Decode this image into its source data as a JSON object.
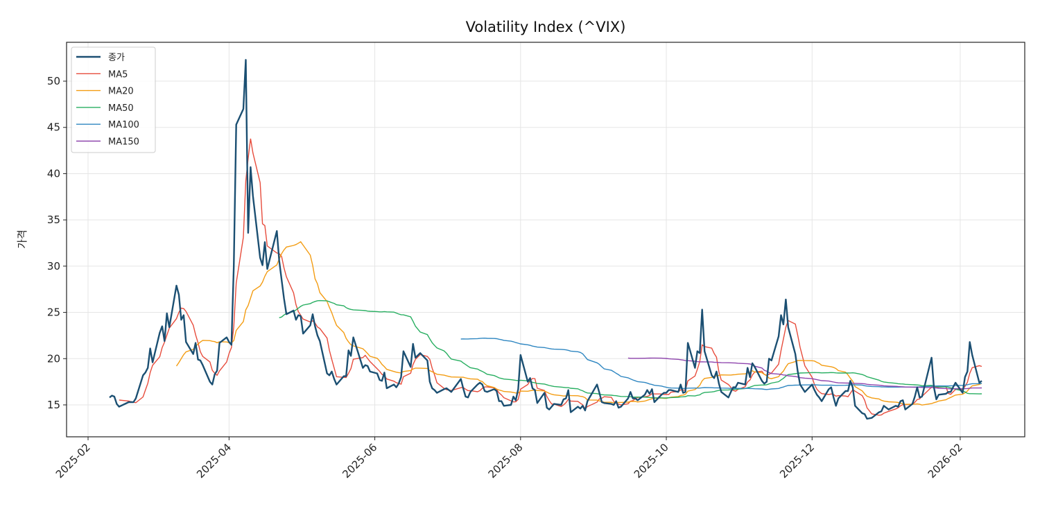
{
  "chart_data": {
    "type": "line",
    "title": "Volatility Index (^VIX)",
    "xlabel": "",
    "ylabel": "가격",
    "xlim": [
      "2025-01-23",
      "2026-02-28"
    ],
    "ylim": [
      11.55,
      54.2
    ],
    "x_ticks": [
      "2025-02",
      "2025-04",
      "2025-06",
      "2025-08",
      "2025-10",
      "2025-12",
      "2026-02"
    ],
    "y_ticks": [
      15,
      20,
      25,
      30,
      35,
      40,
      45,
      50
    ],
    "grid": true,
    "legend_position": "top-left",
    "close": {
      "name": "종가",
      "color": "#1b4f72",
      "points": [
        [
          "2025-02-10",
          15.8
        ],
        [
          "2025-02-11",
          16.0
        ],
        [
          "2025-02-12",
          15.9
        ],
        [
          "2025-02-13",
          15.1
        ],
        [
          "2025-02-14",
          14.8
        ],
        [
          "2025-02-18",
          15.3
        ],
        [
          "2025-02-20",
          15.3
        ],
        [
          "2025-02-21",
          15.7
        ],
        [
          "2025-02-24",
          18.2
        ],
        [
          "2025-02-25",
          18.5
        ],
        [
          "2025-02-26",
          19.0
        ],
        [
          "2025-02-27",
          21.1
        ],
        [
          "2025-02-28",
          19.6
        ],
        [
          "2025-03-03",
          22.8
        ],
        [
          "2025-03-04",
          23.5
        ],
        [
          "2025-03-05",
          21.9
        ],
        [
          "2025-03-06",
          24.9
        ],
        [
          "2025-03-07",
          23.4
        ],
        [
          "2025-03-10",
          27.9
        ],
        [
          "2025-03-11",
          26.9
        ],
        [
          "2025-03-12",
          24.2
        ],
        [
          "2025-03-13",
          24.7
        ],
        [
          "2025-03-14",
          21.8
        ],
        [
          "2025-03-17",
          20.5
        ],
        [
          "2025-03-18",
          21.7
        ],
        [
          "2025-03-19",
          19.9
        ],
        [
          "2025-03-20",
          19.8
        ],
        [
          "2025-03-21",
          19.3
        ],
        [
          "2025-03-24",
          17.5
        ],
        [
          "2025-03-25",
          17.2
        ],
        [
          "2025-03-26",
          18.3
        ],
        [
          "2025-03-27",
          18.7
        ],
        [
          "2025-03-28",
          21.7
        ],
        [
          "2025-03-31",
          22.3
        ],
        [
          "2025-04-01",
          21.8
        ],
        [
          "2025-04-02",
          21.5
        ],
        [
          "2025-04-03",
          30.0
        ],
        [
          "2025-04-04",
          45.3
        ],
        [
          "2025-04-07",
          47.0
        ],
        [
          "2025-04-08",
          52.3
        ],
        [
          "2025-04-09",
          33.6
        ],
        [
          "2025-04-10",
          40.7
        ],
        [
          "2025-04-11",
          37.6
        ],
        [
          "2025-04-14",
          30.9
        ],
        [
          "2025-04-15",
          30.1
        ],
        [
          "2025-04-16",
          32.6
        ],
        [
          "2025-04-17",
          29.7
        ],
        [
          "2025-04-21",
          33.8
        ],
        [
          "2025-04-22",
          30.6
        ],
        [
          "2025-04-23",
          28.5
        ],
        [
          "2025-04-24",
          26.5
        ],
        [
          "2025-04-25",
          24.8
        ],
        [
          "2025-04-28",
          25.2
        ],
        [
          "2025-04-29",
          24.2
        ],
        [
          "2025-04-30",
          24.7
        ],
        [
          "2025-05-01",
          24.6
        ],
        [
          "2025-05-02",
          22.7
        ],
        [
          "2025-05-05",
          23.6
        ],
        [
          "2025-05-06",
          24.8
        ],
        [
          "2025-05-07",
          23.5
        ],
        [
          "2025-05-08",
          22.5
        ],
        [
          "2025-05-09",
          21.9
        ],
        [
          "2025-05-12",
          18.4
        ],
        [
          "2025-05-13",
          18.2
        ],
        [
          "2025-05-14",
          18.6
        ],
        [
          "2025-05-15",
          17.8
        ],
        [
          "2025-05-16",
          17.2
        ],
        [
          "2025-05-19",
          18.1
        ],
        [
          "2025-05-20",
          18.1
        ],
        [
          "2025-05-21",
          20.9
        ],
        [
          "2025-05-22",
          20.3
        ],
        [
          "2025-05-23",
          22.3
        ],
        [
          "2025-05-27",
          19.0
        ],
        [
          "2025-05-28",
          19.3
        ],
        [
          "2025-05-29",
          19.2
        ],
        [
          "2025-05-30",
          18.6
        ],
        [
          "2025-06-02",
          18.4
        ],
        [
          "2025-06-03",
          17.7
        ],
        [
          "2025-06-04",
          17.6
        ],
        [
          "2025-06-05",
          18.5
        ],
        [
          "2025-06-06",
          16.8
        ],
        [
          "2025-06-09",
          17.2
        ],
        [
          "2025-06-10",
          16.9
        ],
        [
          "2025-06-11",
          17.3
        ],
        [
          "2025-06-12",
          18.0
        ],
        [
          "2025-06-13",
          20.8
        ],
        [
          "2025-06-16",
          19.1
        ],
        [
          "2025-06-17",
          21.6
        ],
        [
          "2025-06-18",
          20.1
        ],
        [
          "2025-06-20",
          20.6
        ],
        [
          "2025-06-23",
          19.8
        ],
        [
          "2025-06-24",
          17.5
        ],
        [
          "2025-06-25",
          16.8
        ],
        [
          "2025-06-26",
          16.6
        ],
        [
          "2025-06-27",
          16.3
        ],
        [
          "2025-06-30",
          16.7
        ],
        [
          "2025-07-01",
          16.8
        ],
        [
          "2025-07-02",
          16.6
        ],
        [
          "2025-07-03",
          16.4
        ],
        [
          "2025-07-07",
          17.8
        ],
        [
          "2025-07-08",
          16.8
        ],
        [
          "2025-07-09",
          15.9
        ],
        [
          "2025-07-10",
          15.8
        ],
        [
          "2025-07-11",
          16.4
        ],
        [
          "2025-07-14",
          17.2
        ],
        [
          "2025-07-15",
          17.4
        ],
        [
          "2025-07-16",
          17.2
        ],
        [
          "2025-07-17",
          16.5
        ],
        [
          "2025-07-18",
          16.4
        ],
        [
          "2025-07-21",
          16.7
        ],
        [
          "2025-07-22",
          16.5
        ],
        [
          "2025-07-23",
          15.4
        ],
        [
          "2025-07-24",
          15.4
        ],
        [
          "2025-07-25",
          14.9
        ],
        [
          "2025-07-28",
          15.0
        ],
        [
          "2025-07-29",
          15.9
        ],
        [
          "2025-07-30",
          15.5
        ],
        [
          "2025-07-31",
          16.7
        ],
        [
          "2025-08-01",
          20.4
        ],
        [
          "2025-08-04",
          17.5
        ],
        [
          "2025-08-05",
          17.9
        ],
        [
          "2025-08-06",
          16.8
        ],
        [
          "2025-08-07",
          16.6
        ],
        [
          "2025-08-08",
          15.2
        ],
        [
          "2025-08-11",
          16.3
        ],
        [
          "2025-08-12",
          14.7
        ],
        [
          "2025-08-13",
          14.5
        ],
        [
          "2025-08-14",
          14.8
        ],
        [
          "2025-08-15",
          15.1
        ],
        [
          "2025-08-18",
          15.0
        ],
        [
          "2025-08-19",
          15.6
        ],
        [
          "2025-08-20",
          15.7
        ],
        [
          "2025-08-21",
          16.6
        ],
        [
          "2025-08-22",
          14.2
        ],
        [
          "2025-08-25",
          14.8
        ],
        [
          "2025-08-26",
          14.6
        ],
        [
          "2025-08-27",
          14.9
        ],
        [
          "2025-08-28",
          14.4
        ],
        [
          "2025-08-29",
          15.4
        ],
        [
          "2025-09-02",
          17.2
        ],
        [
          "2025-09-03",
          16.3
        ],
        [
          "2025-09-04",
          15.3
        ],
        [
          "2025-09-05",
          15.2
        ],
        [
          "2025-09-08",
          15.1
        ],
        [
          "2025-09-09",
          15.0
        ],
        [
          "2025-09-10",
          15.4
        ],
        [
          "2025-09-11",
          14.7
        ],
        [
          "2025-09-12",
          14.8
        ],
        [
          "2025-09-15",
          15.7
        ],
        [
          "2025-09-16",
          16.4
        ],
        [
          "2025-09-17",
          15.7
        ],
        [
          "2025-09-18",
          15.7
        ],
        [
          "2025-09-19",
          15.5
        ],
        [
          "2025-09-22",
          16.1
        ],
        [
          "2025-09-23",
          16.6
        ],
        [
          "2025-09-24",
          16.2
        ],
        [
          "2025-09-25",
          16.7
        ],
        [
          "2025-09-26",
          15.3
        ],
        [
          "2025-09-29",
          16.1
        ],
        [
          "2025-09-30",
          16.3
        ],
        [
          "2025-10-01",
          16.3
        ],
        [
          "2025-10-02",
          16.6
        ],
        [
          "2025-10-03",
          16.6
        ],
        [
          "2025-10-06",
          16.4
        ],
        [
          "2025-10-07",
          17.2
        ],
        [
          "2025-10-08",
          16.3
        ],
        [
          "2025-10-09",
          16.4
        ],
        [
          "2025-10-10",
          21.7
        ],
        [
          "2025-10-13",
          19.0
        ],
        [
          "2025-10-14",
          20.8
        ],
        [
          "2025-10-15",
          20.6
        ],
        [
          "2025-10-16",
          25.3
        ],
        [
          "2025-10-17",
          20.8
        ],
        [
          "2025-10-20",
          18.2
        ],
        [
          "2025-10-21",
          17.9
        ],
        [
          "2025-10-22",
          18.6
        ],
        [
          "2025-10-23",
          17.3
        ],
        [
          "2025-10-24",
          16.4
        ],
        [
          "2025-10-27",
          15.8
        ],
        [
          "2025-10-28",
          16.4
        ],
        [
          "2025-10-29",
          16.9
        ],
        [
          "2025-10-30",
          16.9
        ],
        [
          "2025-10-31",
          17.4
        ],
        [
          "2025-11-03",
          17.2
        ],
        [
          "2025-11-04",
          19.0
        ],
        [
          "2025-11-05",
          18.0
        ],
        [
          "2025-11-06",
          19.5
        ],
        [
          "2025-11-07",
          19.1
        ],
        [
          "2025-11-10",
          17.6
        ],
        [
          "2025-11-11",
          17.3
        ],
        [
          "2025-11-12",
          17.5
        ],
        [
          "2025-11-13",
          20.0
        ],
        [
          "2025-11-14",
          19.8
        ],
        [
          "2025-11-17",
          22.4
        ],
        [
          "2025-11-18",
          24.7
        ],
        [
          "2025-11-19",
          23.7
        ],
        [
          "2025-11-20",
          26.4
        ],
        [
          "2025-11-21",
          23.4
        ],
        [
          "2025-11-24",
          20.5
        ],
        [
          "2025-11-25",
          18.6
        ],
        [
          "2025-11-26",
          17.2
        ],
        [
          "2025-11-28",
          16.4
        ],
        [
          "2025-12-01",
          17.2
        ],
        [
          "2025-12-02",
          16.6
        ],
        [
          "2025-12-03",
          16.1
        ],
        [
          "2025-12-04",
          15.8
        ],
        [
          "2025-12-05",
          15.4
        ],
        [
          "2025-12-08",
          16.7
        ],
        [
          "2025-12-09",
          16.9
        ],
        [
          "2025-12-10",
          15.8
        ],
        [
          "2025-12-11",
          14.9
        ],
        [
          "2025-12-12",
          15.7
        ],
        [
          "2025-12-15",
          16.5
        ],
        [
          "2025-12-16",
          16.5
        ],
        [
          "2025-12-17",
          17.6
        ],
        [
          "2025-12-18",
          16.9
        ],
        [
          "2025-12-19",
          14.9
        ],
        [
          "2025-12-22",
          14.1
        ],
        [
          "2025-12-23",
          14.0
        ],
        [
          "2025-12-24",
          13.5
        ],
        [
          "2025-12-26",
          13.6
        ],
        [
          "2025-12-29",
          14.2
        ],
        [
          "2025-12-30",
          14.3
        ],
        [
          "2025-12-31",
          14.9
        ],
        [
          "2026-01-02",
          14.5
        ],
        [
          "2026-01-05",
          14.9
        ],
        [
          "2026-01-06",
          14.8
        ],
        [
          "2026-01-07",
          15.4
        ],
        [
          "2026-01-08",
          15.5
        ],
        [
          "2026-01-09",
          14.5
        ],
        [
          "2026-01-12",
          15.1
        ],
        [
          "2026-01-13",
          15.9
        ],
        [
          "2026-01-14",
          16.9
        ],
        [
          "2026-01-15",
          15.8
        ],
        [
          "2026-01-16",
          15.9
        ],
        [
          "2026-01-20",
          20.1
        ],
        [
          "2026-01-21",
          16.9
        ],
        [
          "2026-01-22",
          15.6
        ],
        [
          "2026-01-23",
          16.1
        ],
        [
          "2026-01-26",
          16.2
        ],
        [
          "2026-01-27",
          16.4
        ],
        [
          "2026-01-28",
          16.4
        ],
        [
          "2026-01-29",
          16.9
        ],
        [
          "2026-01-30",
          17.4
        ],
        [
          "2026-02-02",
          16.3
        ],
        [
          "2026-02-03",
          18.0
        ],
        [
          "2026-02-04",
          18.6
        ],
        [
          "2026-02-05",
          21.8
        ],
        [
          "2026-02-06",
          20.4
        ],
        [
          "2026-02-09",
          17.4
        ],
        [
          "2026-02-10",
          17.6
        ]
      ]
    },
    "moving_averages": [
      {
        "name": "MA5",
        "window": 5,
        "color": "#e74c3c"
      },
      {
        "name": "MA20",
        "window": 20,
        "color": "#f39c12"
      },
      {
        "name": "MA50",
        "window": 50,
        "color": "#27ae60"
      },
      {
        "name": "MA100",
        "window": 100,
        "color": "#2e86c1"
      },
      {
        "name": "MA150",
        "window": 150,
        "color": "#8e44ad"
      }
    ],
    "ma_start_dates": {
      "MA5": "2025-02-14",
      "MA20": "2025-03-10",
      "MA50": "2025-04-22",
      "MA100": "2025-07-07",
      "MA150": "2025-09-15"
    }
  }
}
